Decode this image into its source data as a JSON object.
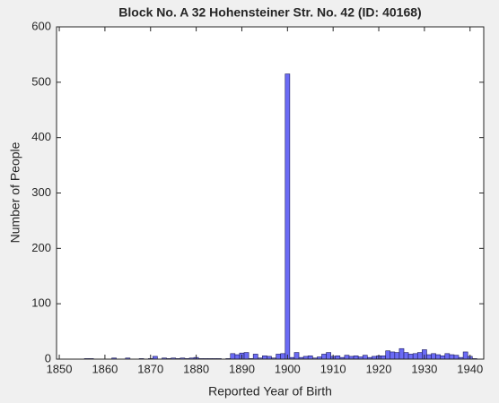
{
  "chart_data": {
    "type": "histogram",
    "title": "Block No. A 32 Hohensteiner Str. No. 42 (ID: 40168)",
    "x_label": "Reported Year of Birth",
    "y_label": "Number of People",
    "bins": [
      1854.5,
      1855.5,
      1856.5,
      1857.5,
      1858.5,
      1859.5,
      1860.5,
      1861.5,
      1862.5,
      1863.5,
      1864.5,
      1865.5,
      1866.5,
      1867.5,
      1868.5,
      1869.5,
      1870.5,
      1871.5,
      1872.5,
      1873.5,
      1874.5,
      1875.5,
      1876.5,
      1877.5,
      1878.5,
      1879.5,
      1880.5,
      1881.5,
      1882.5,
      1883.5,
      1884.5,
      1885.5,
      1886.5,
      1887.5,
      1888.5,
      1889.5,
      1890.5,
      1891.5,
      1892.5,
      1893.5,
      1894.5,
      1895.5,
      1896.5,
      1897.5,
      1898.5,
      1899.5,
      1900.5,
      1901.5,
      1902.5,
      1903.5,
      1904.5,
      1905.5,
      1906.5,
      1907.5,
      1908.5,
      1909.5,
      1910.5,
      1911.5,
      1912.5,
      1913.5,
      1914.5,
      1915.5,
      1916.5,
      1917.5,
      1918.5,
      1919.5,
      1920.5,
      1921.5,
      1922.5,
      1923.5,
      1924.5,
      1925.5,
      1926.5,
      1927.5,
      1928.5,
      1929.5,
      1930.5,
      1931.5,
      1932.5,
      1933.5,
      1934.5,
      1935.5,
      1936.5,
      1937.5,
      1938.5,
      1939.5,
      1940.5,
      1941.5
    ],
    "values": [
      0,
      1,
      1,
      0,
      0,
      0,
      0,
      2,
      0,
      0,
      2,
      0,
      0,
      1,
      0,
      1,
      5,
      0,
      2,
      1,
      2,
      1,
      2,
      1,
      2,
      3,
      1,
      1,
      1,
      1,
      1,
      0,
      1,
      10,
      8,
      11,
      12,
      1,
      9,
      2,
      6,
      5,
      2,
      9,
      10,
      515,
      3,
      12,
      3,
      5,
      6,
      2,
      4,
      9,
      12,
      5,
      6,
      3,
      7,
      5,
      6,
      4,
      7,
      3,
      5,
      6,
      6,
      15,
      13,
      12,
      19,
      12,
      9,
      10,
      12,
      17,
      8,
      10,
      8,
      6,
      10,
      8,
      7,
      3,
      13,
      5,
      1
    ],
    "color": "#6b6bf5",
    "xlim": [
      1849.4,
      1943
    ],
    "xticks": [
      1850,
      1860,
      1870,
      1880,
      1890,
      1900,
      1910,
      1920,
      1930,
      1940
    ],
    "ylim": [
      0,
      600
    ],
    "yticks": [
      0,
      100,
      200,
      300,
      400,
      500,
      600
    ]
  }
}
